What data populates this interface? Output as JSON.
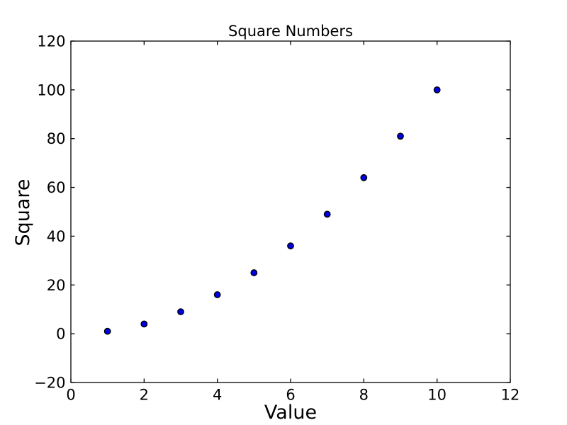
{
  "chart_data": {
    "type": "scatter",
    "title": "Square Numbers",
    "xlabel": "Value",
    "ylabel": "Square",
    "x": [
      1,
      2,
      3,
      4,
      5,
      6,
      7,
      8,
      9,
      10
    ],
    "y": [
      1,
      4,
      9,
      16,
      25,
      36,
      49,
      64,
      81,
      100
    ],
    "xlim": [
      0,
      12
    ],
    "ylim": [
      -20,
      120
    ],
    "xticks": [
      0,
      2,
      4,
      6,
      8,
      10,
      12
    ],
    "yticks": [
      -20,
      0,
      20,
      40,
      60,
      80,
      100,
      120
    ],
    "grid": false,
    "legend": null,
    "tick_direction": "in",
    "colors": {
      "marker_fill": "#0000e6",
      "marker_edge": "#000000",
      "axis": "#000000",
      "text": "#000000",
      "background": "#ffffff"
    }
  }
}
